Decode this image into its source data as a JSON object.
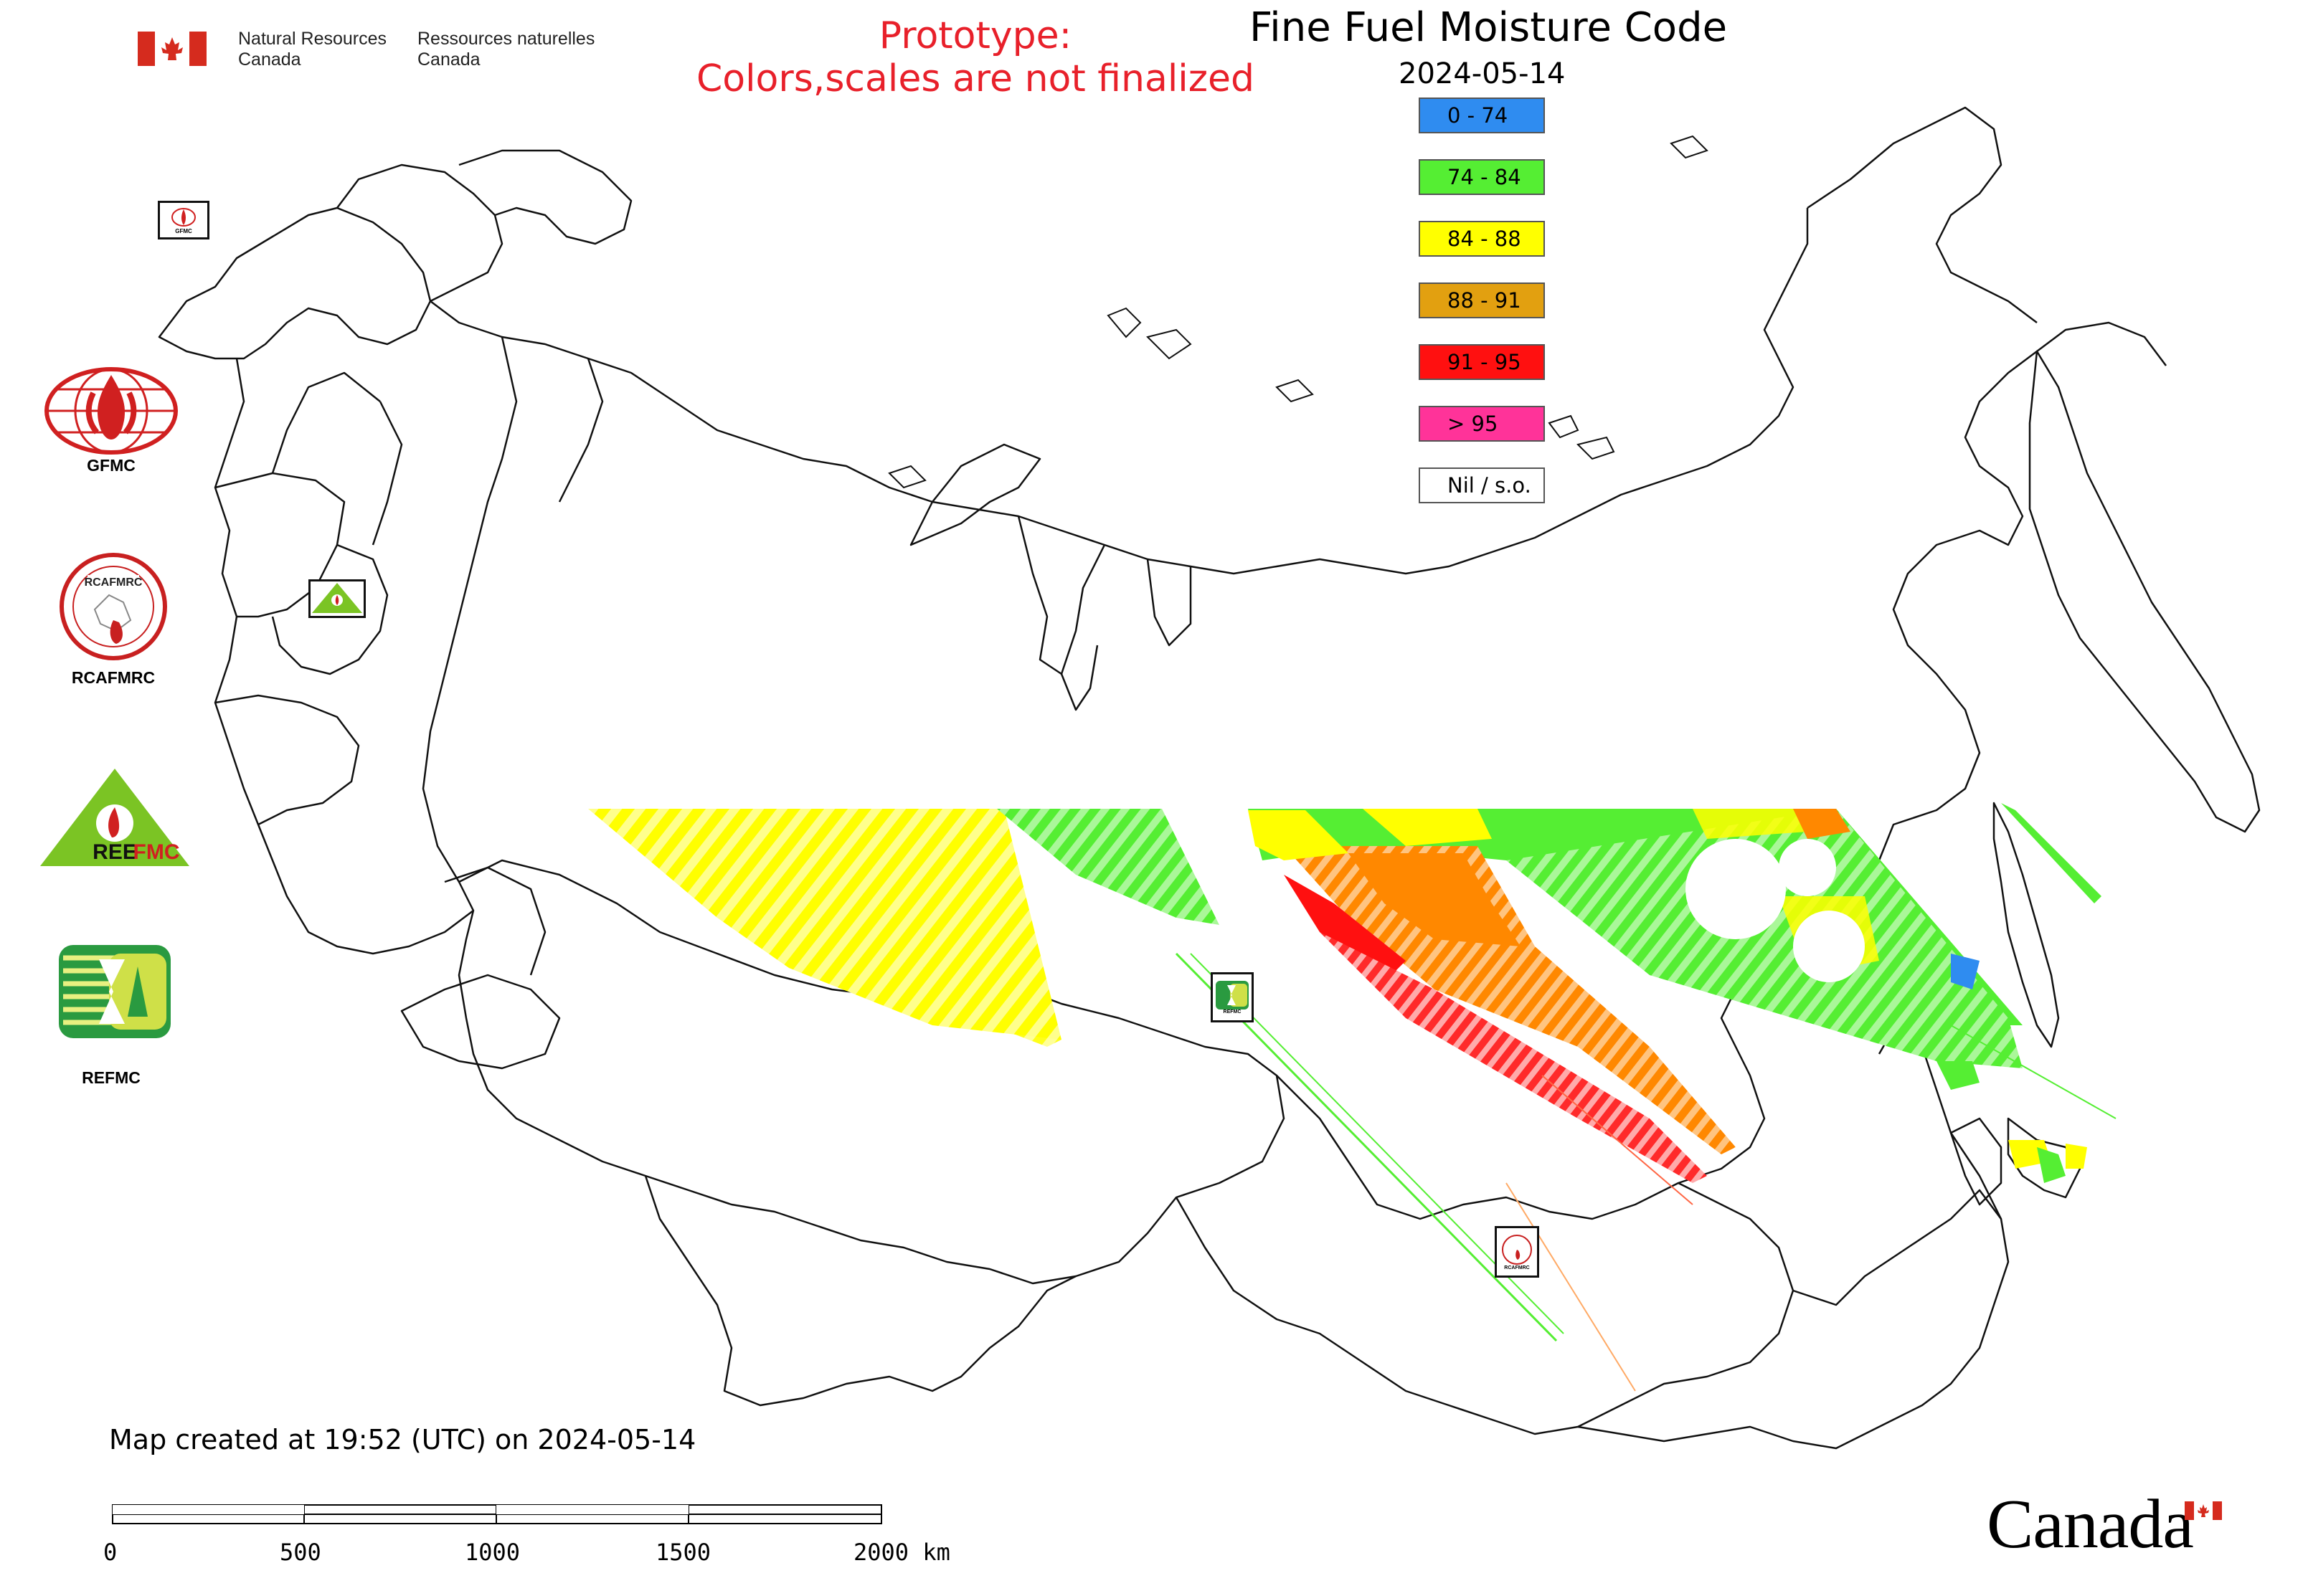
{
  "header": {
    "org_en_line1": "Natural Resources",
    "org_en_line2": "Canada",
    "org_fr_line1": "Ressources naturelles",
    "org_fr_line2": "Canada",
    "prototype_line1": "Prototype:",
    "prototype_line2": "Colors,scales are not finalized"
  },
  "map": {
    "title": "Fine Fuel Moisture Code",
    "date": "2024-05-14",
    "created_note": "Map created at 19:52 (UTC) on 2024-05-14"
  },
  "legend": {
    "items": [
      {
        "label": "0 - 74",
        "color": "#2f8cf0"
      },
      {
        "label": "74 - 84",
        "color": "#55ee33"
      },
      {
        "label": "84 - 88",
        "color": "#ffff00"
      },
      {
        "label": "88 - 91",
        "color": "#e2a010"
      },
      {
        "label": "91 - 95",
        "color": "#ff1010"
      },
      {
        "label": "> 95",
        "color": "#ff3399"
      },
      {
        "label": "Nil / s.o.",
        "color": "#ffffff"
      }
    ]
  },
  "logos": {
    "gfmc": "GFMC",
    "rcafmrc": "RCAFMRC",
    "reefmc": "REEFMC",
    "refmc": "REFMC",
    "gfmc_badge": "GFMC",
    "rcafmrc_badge": "RCAFMRC",
    "reefmc_badge": "REEFMC",
    "refmc_badge": "REFMC"
  },
  "scale_bar": {
    "ticks": [
      "0",
      "500",
      "1000",
      "1500",
      "2000 km"
    ]
  },
  "footer": {
    "wordmark": "Canada"
  },
  "colors": {
    "prototype_text": "#e8202a",
    "canada_red": "#d52b1e"
  }
}
